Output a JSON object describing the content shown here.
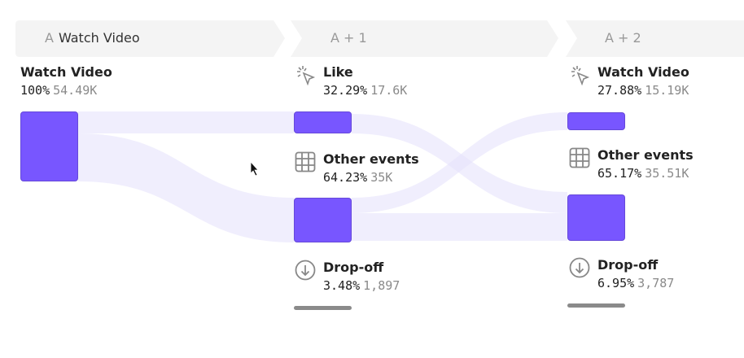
{
  "headers": [
    {
      "prefix": "A",
      "label": "Watch Video"
    },
    {
      "prefix": "A + 1",
      "label": ""
    },
    {
      "prefix": "A + 2",
      "label": ""
    }
  ],
  "columns": [
    {
      "nodes": [
        {
          "name": "Watch Video",
          "percent": "100%",
          "count": "54.49K",
          "icon": ""
        }
      ]
    },
    {
      "nodes": [
        {
          "name": "Like",
          "percent": "32.29%",
          "count": "17.6K",
          "icon": "click-cursor-icon"
        },
        {
          "name": "Other events",
          "percent": "64.23%",
          "count": "35K",
          "icon": "grid-icon"
        },
        {
          "name": "Drop-off",
          "percent": "3.48%",
          "count": "1,897",
          "icon": "arrow-down-circle-icon"
        }
      ]
    },
    {
      "nodes": [
        {
          "name": "Watch Video",
          "percent": "27.88%",
          "count": "15.19K",
          "icon": "click-cursor-icon"
        },
        {
          "name": "Other events",
          "percent": "65.17%",
          "count": "35.51K",
          "icon": "grid-icon"
        },
        {
          "name": "Drop-off",
          "percent": "6.95%",
          "count": "3,787",
          "icon": "arrow-down-circle-icon"
        }
      ]
    }
  ],
  "colors": {
    "node": "#7856ff",
    "flow": "#efedfc",
    "dropoff": "#8a8a8a",
    "header": "#f4f4f4"
  }
}
